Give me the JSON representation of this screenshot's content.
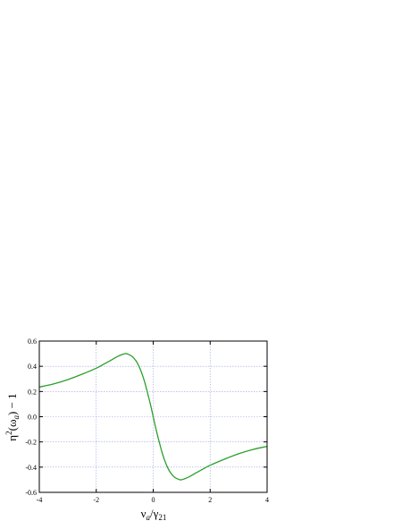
{
  "chart_data": {
    "type": "line",
    "title": "",
    "xlabel": {
      "base": "ν",
      "sub1": "a",
      "slash": "/γ",
      "sub2": "21"
    },
    "ylabel": {
      "eta": "η",
      "sup": "2",
      "open": "(ω",
      "sub": "a",
      "close": ") − 1"
    },
    "xlim": [
      -4,
      4
    ],
    "ylim": [
      -0.6,
      0.6
    ],
    "xticks": [
      -4,
      -2,
      0,
      2,
      4
    ],
    "xtick_labels": [
      "-4",
      "-2",
      "0",
      "2",
      "4"
    ],
    "yticks": [
      0.6,
      0.4,
      0.2,
      0.0,
      -0.2,
      -0.4,
      -0.6
    ],
    "ytick_labels": [
      "0.6",
      "0.4",
      "0.2",
      "0.0",
      "-0.2",
      "-0.4",
      "-0.6"
    ],
    "grid": true,
    "grid_color": "#9aa3e6",
    "series": [
      {
        "color": "#2aa02a",
        "x": [
          -4,
          -3.5,
          -3,
          -2.5,
          -2,
          -1.75,
          -1.5,
          -1.25,
          -1,
          -0.9,
          -0.75,
          -0.6,
          -0.5,
          -0.4,
          -0.3,
          -0.2,
          -0.1,
          0,
          0.1,
          0.2,
          0.3,
          0.4,
          0.5,
          0.6,
          0.75,
          0.9,
          1,
          1.25,
          1.5,
          1.75,
          2,
          2.5,
          3,
          3.5,
          4
        ],
        "y": [
          0.235,
          0.26,
          0.294,
          0.337,
          0.385,
          0.415,
          0.446,
          0.478,
          0.5,
          0.497,
          0.48,
          0.442,
          0.4,
          0.345,
          0.275,
          0.19,
          0.1,
          0.0,
          -0.1,
          -0.19,
          -0.275,
          -0.345,
          -0.4,
          -0.442,
          -0.48,
          -0.497,
          -0.5,
          -0.478,
          -0.446,
          -0.415,
          -0.385,
          -0.337,
          -0.294,
          -0.26,
          -0.235
        ]
      }
    ]
  }
}
